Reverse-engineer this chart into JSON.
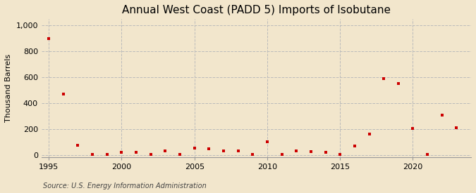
{
  "title": "Annual West Coast (PADD 5) Imports of Isobutane",
  "ylabel": "Thousand Barrels",
  "source": "Source: U.S. Energy Information Administration",
  "background_color": "#f2e6cc",
  "marker_color": "#cc0000",
  "years": [
    1995,
    1996,
    1997,
    1998,
    1999,
    2000,
    2001,
    2002,
    2003,
    2004,
    2005,
    2006,
    2007,
    2008,
    2009,
    2010,
    2011,
    2012,
    2013,
    2014,
    2015,
    2016,
    2017,
    2018,
    2019,
    2020,
    2021,
    2022,
    2023
  ],
  "values": [
    900,
    470,
    75,
    5,
    5,
    20,
    20,
    5,
    30,
    5,
    50,
    45,
    30,
    30,
    5,
    100,
    5,
    30,
    25,
    20,
    5,
    70,
    160,
    590,
    550,
    205,
    5,
    310,
    210
  ],
  "xlim": [
    1994.5,
    2024
  ],
  "ylim": [
    -20,
    1050
  ],
  "yticks": [
    0,
    200,
    400,
    600,
    800,
    1000
  ],
  "ytick_labels": [
    "0",
    "200",
    "400",
    "600",
    "800",
    "1,000"
  ],
  "xticks": [
    1995,
    2000,
    2005,
    2010,
    2015,
    2020
  ],
  "grid_color": "#bbbbbb",
  "title_fontsize": 11,
  "label_fontsize": 8,
  "tick_fontsize": 8,
  "source_fontsize": 7,
  "marker_size": 3.5
}
